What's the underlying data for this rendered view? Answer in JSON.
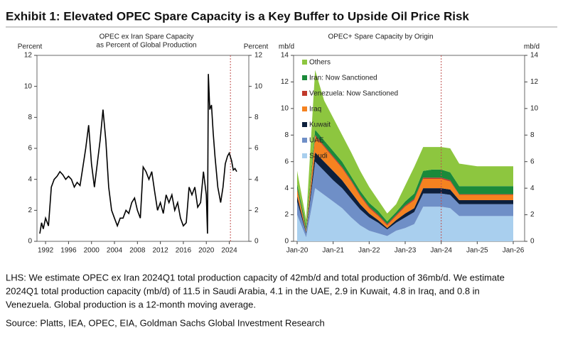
{
  "header": {
    "title": "Exhibit 1: Elevated OPEC Spare Capacity is a Key Buffer to Upside Oil Price Risk"
  },
  "chart_data": [
    {
      "type": "line",
      "title": [
        "OPEC ex Iran Spare Capacity",
        "as Percent of Global Production"
      ],
      "y_label": "Percent",
      "y2_label": "Percent",
      "x": [
        1991.0,
        1991.3,
        1991.6,
        1992.0,
        1992.5,
        1993.0,
        1993.5,
        1994.0,
        1994.5,
        1995.0,
        1995.5,
        1996.0,
        1996.5,
        1997.0,
        1997.5,
        1998.0,
        1998.5,
        1999.0,
        1999.5,
        2000.0,
        2000.5,
        2001.0,
        2001.5,
        2002.0,
        2002.5,
        2003.0,
        2003.5,
        2004.0,
        2004.5,
        2005.0,
        2005.5,
        2006.0,
        2006.5,
        2007.0,
        2007.5,
        2008.0,
        2008.5,
        2009.0,
        2009.5,
        2010.0,
        2010.5,
        2011.0,
        2011.5,
        2012.0,
        2012.5,
        2013.0,
        2013.5,
        2014.0,
        2014.5,
        2015.0,
        2015.5,
        2016.0,
        2016.5,
        2017.0,
        2017.5,
        2018.0,
        2018.5,
        2019.0,
        2019.5,
        2020.0,
        2020.2,
        2020.35,
        2020.6,
        2020.9,
        2021.2,
        2021.5,
        2022.0,
        2022.5,
        2022.9,
        2023.3,
        2023.7,
        2024.0,
        2024.4,
        2024.7,
        2025.0,
        2025.3
      ],
      "values": [
        0.5,
        1.2,
        0.8,
        1.5,
        1.0,
        3.5,
        4.0,
        4.2,
        4.5,
        4.3,
        4.0,
        4.2,
        4.0,
        3.5,
        3.8,
        3.6,
        4.8,
        6.0,
        7.5,
        5.0,
        3.5,
        5.0,
        6.5,
        8.5,
        6.5,
        3.5,
        2.0,
        1.5,
        1.0,
        1.5,
        1.5,
        2.0,
        1.8,
        2.5,
        2.8,
        2.0,
        1.5,
        4.8,
        4.5,
        4.0,
        4.5,
        3.2,
        2.0,
        2.5,
        1.8,
        3.0,
        2.5,
        3.0,
        2.0,
        2.5,
        1.5,
        1.0,
        1.2,
        3.5,
        3.0,
        3.5,
        2.2,
        2.5,
        4.5,
        3.0,
        0.5,
        10.8,
        8.5,
        8.8,
        7.0,
        5.5,
        3.5,
        2.5,
        3.5,
        5.0,
        5.5,
        5.7,
        5.2,
        4.6,
        4.7,
        4.5
      ],
      "color": "#000000",
      "xlim": [
        1990.5,
        2027.4
      ],
      "xticks": [
        1992,
        1996,
        2000,
        2004,
        2008,
        2012,
        2016,
        2020,
        2024
      ],
      "ylim": [
        0,
        12
      ],
      "yticks": [
        0,
        2,
        4,
        6,
        8,
        10,
        12
      ],
      "y2lim": [
        0,
        12
      ],
      "y2ticks": [
        0,
        2,
        4,
        6,
        8,
        10,
        12
      ],
      "vline_x": 2024.2,
      "vline_color": "#c0504d"
    },
    {
      "type": "stacked_area",
      "title": "OPEC+ Spare Capacity by Origin",
      "y_label": "mb/d",
      "y2_label": "mb/d",
      "categories": [
        "Jan-20",
        null,
        null,
        null,
        "Jan-21",
        null,
        null,
        null,
        "Jan-22",
        null,
        null,
        null,
        "Jan-23",
        null,
        null,
        null,
        "Jan-24",
        null,
        null,
        null,
        "Jan-25",
        null,
        null,
        null,
        "Jan-26"
      ],
      "series": [
        {
          "name": "Saudi",
          "color": "#a9cfee",
          "values": [
            2.0,
            0.3,
            4.0,
            3.5,
            3.0,
            2.5,
            1.8,
            1.2,
            0.8,
            0.6,
            0.4,
            0.8,
            1.0,
            1.3,
            2.6,
            2.6,
            2.6,
            2.5,
            1.9,
            1.9,
            1.9,
            1.9,
            1.9,
            1.9,
            1.9
          ]
        },
        {
          "name": "UAE",
          "color": "#6f8fc7",
          "values": [
            1.0,
            0.3,
            2.0,
            1.8,
            1.6,
            1.5,
            1.4,
            1.2,
            1.0,
            0.8,
            0.5,
            0.6,
            0.8,
            0.9,
            1.0,
            1.0,
            1.0,
            1.0,
            0.9,
            0.9,
            0.9,
            0.9,
            0.9,
            0.9,
            0.9
          ]
        },
        {
          "name": "Kuwait",
          "color": "#0d1f3c",
          "values": [
            0.4,
            0.1,
            0.7,
            0.7,
            0.7,
            0.6,
            0.5,
            0.4,
            0.3,
            0.2,
            0.1,
            0.2,
            0.3,
            0.3,
            0.4,
            0.4,
            0.4,
            0.4,
            0.3,
            0.3,
            0.3,
            0.3,
            0.3,
            0.3,
            0.3
          ]
        },
        {
          "name": "Iraq",
          "color": "#f58220",
          "values": [
            0.5,
            0.1,
            1.2,
            1.1,
            1.0,
            0.9,
            0.8,
            0.6,
            0.4,
            0.3,
            0.2,
            0.3,
            0.5,
            0.6,
            0.7,
            0.7,
            0.7,
            0.6,
            0.4,
            0.4,
            0.4,
            0.4,
            0.4,
            0.4,
            0.4
          ]
        },
        {
          "name": "Venezuela: Now Sanctioned",
          "color": "#c0392b",
          "values": [
            0.1,
            0.05,
            0.1,
            0.1,
            0.1,
            0.1,
            0.1,
            0.1,
            0.1,
            0.1,
            0.1,
            0.1,
            0.1,
            0.1,
            0.1,
            0.1,
            0.1,
            0.1,
            0.05,
            0.05,
            0.05,
            0.05,
            0.05,
            0.05,
            0.05
          ]
        },
        {
          "name": "Iran: Now Sanctioned",
          "color": "#1a8a3a",
          "values": [
            0.3,
            0.3,
            0.4,
            0.4,
            0.4,
            0.4,
            0.3,
            0.3,
            0.3,
            0.3,
            0.2,
            0.2,
            0.3,
            0.4,
            0.5,
            0.6,
            0.6,
            0.6,
            0.6,
            0.6,
            0.6,
            0.6,
            0.6,
            0.6,
            0.6
          ]
        },
        {
          "name": "Others",
          "color": "#8dc63f",
          "values": [
            1.0,
            0.5,
            4.5,
            3.0,
            2.5,
            2.0,
            1.8,
            1.5,
            1.2,
            0.8,
            0.6,
            0.6,
            1.2,
            2.0,
            1.8,
            1.7,
            1.7,
            1.8,
            1.7,
            1.6,
            1.5,
            1.5,
            1.5,
            1.5,
            1.5
          ]
        }
      ],
      "ylim": [
        0,
        14
      ],
      "yticks": [
        0,
        2,
        4,
        6,
        8,
        10,
        12,
        14
      ],
      "y2lim": [
        0,
        14
      ],
      "y2ticks": [
        0,
        2,
        4,
        6,
        8,
        10,
        12,
        14
      ],
      "legend": "upper left",
      "vline_index": 16,
      "vline_color": "#c0504d"
    }
  ],
  "notes": [
    "LHS: We estimate OPEC ex Iran 2024Q1 total production capacity of 42mb/d and total production of 36mb/d. We estimate",
    "2024Q1 total production capacity (mb/d) of 11.5 in Saudi Arabia, 4.1 in the UAE, 2.9 in Kuwait, 4.8 in Iraq, and 0.8 in",
    "Venezuela. Global production is a 12-month moving average."
  ],
  "source": "Source: Platts, IEA, OPEC, EIA, Goldman Sachs Global Investment Research"
}
